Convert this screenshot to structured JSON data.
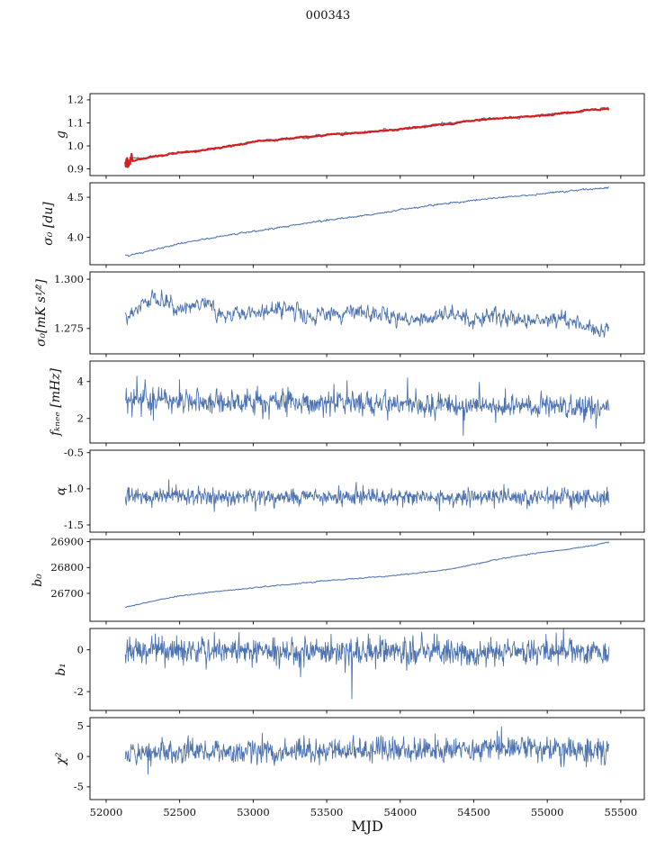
{
  "title": "000343",
  "chart_data": {
    "type": "line",
    "layout": "stacked-panels-shared-x",
    "xlabel": "MJD",
    "x_ticks": [
      "52000",
      "52500",
      "53000",
      "53500",
      "54000",
      "54500",
      "55000",
      "55500"
    ],
    "xlim": [
      51890,
      55660
    ],
    "x_data_range": [
      52130,
      55420
    ],
    "n_points": 1000,
    "line_color": "#4c72b0",
    "highlight_color": "#d62020",
    "panels": [
      {
        "id": "g",
        "ylabel": "g",
        "ylim": [
          0.871,
          1.227
        ],
        "yticks": [
          0.9,
          1.0,
          1.1,
          1.2
        ],
        "ytick_labels": [
          "0.9",
          "1.0",
          "1.1",
          "1.2"
        ],
        "series": [
          {
            "name": "gain-data",
            "color": "#4c72b0",
            "width": 1.0,
            "noise_sigma": 0.002,
            "noise_ar": 0.8,
            "keypoints": [
              [
                52130,
                0.931
              ],
              [
                52200,
                0.938
              ],
              [
                52300,
                0.951
              ],
              [
                52450,
                0.966
              ],
              [
                52600,
                0.978
              ],
              [
                52800,
                0.994
              ],
              [
                53000,
                1.018
              ],
              [
                53150,
                1.026
              ],
              [
                53350,
                1.038
              ],
              [
                53500,
                1.047
              ],
              [
                53700,
                1.057
              ],
              [
                53900,
                1.068
              ],
              [
                54100,
                1.08
              ],
              [
                54300,
                1.094
              ],
              [
                54500,
                1.112
              ],
              [
                54700,
                1.121
              ],
              [
                54900,
                1.129
              ],
              [
                55100,
                1.141
              ],
              [
                55250,
                1.152
              ],
              [
                55350,
                1.158
              ],
              [
                55420,
                1.162
              ]
            ]
          },
          {
            "name": "gain-model",
            "color": "#d62020",
            "width": 2.2,
            "noise_sigma": 0.001,
            "noise_ar": 0.8,
            "start_scatter": {
              "x_end": 52185,
              "sigma": 0.013
            },
            "keypoints": [
              [
                52130,
                0.931
              ],
              [
                52200,
                0.938
              ],
              [
                52300,
                0.951
              ],
              [
                52450,
                0.966
              ],
              [
                52600,
                0.978
              ],
              [
                52800,
                0.994
              ],
              [
                53000,
                1.018
              ],
              [
                53150,
                1.026
              ],
              [
                53350,
                1.038
              ],
              [
                53500,
                1.047
              ],
              [
                53700,
                1.057
              ],
              [
                53900,
                1.068
              ],
              [
                54100,
                1.08
              ],
              [
                54300,
                1.094
              ],
              [
                54500,
                1.112
              ],
              [
                54700,
                1.121
              ],
              [
                54900,
                1.129
              ],
              [
                55100,
                1.141
              ],
              [
                55250,
                1.152
              ],
              [
                55350,
                1.158
              ],
              [
                55420,
                1.162
              ]
            ]
          }
        ]
      },
      {
        "id": "sigma0-du",
        "ylabel": "σ₀ [du]",
        "ylim": [
          3.66,
          4.68
        ],
        "yticks": [
          4.0,
          4.5
        ],
        "ytick_labels": [
          "4.0",
          "4.5"
        ],
        "series": [
          {
            "name": "sigma0-du",
            "color": "#4c72b0",
            "width": 1.0,
            "noise_sigma": 0.004,
            "noise_ar": 0.6,
            "keypoints": [
              [
                52130,
                3.77
              ],
              [
                52250,
                3.81
              ],
              [
                52400,
                3.88
              ],
              [
                52550,
                3.94
              ],
              [
                52700,
                3.99
              ],
              [
                52900,
                4.05
              ],
              [
                53100,
                4.1
              ],
              [
                53300,
                4.16
              ],
              [
                53500,
                4.21
              ],
              [
                53700,
                4.26
              ],
              [
                53900,
                4.31
              ],
              [
                54100,
                4.37
              ],
              [
                54300,
                4.42
              ],
              [
                54500,
                4.46
              ],
              [
                54700,
                4.5
              ],
              [
                54900,
                4.53
              ],
              [
                55100,
                4.57
              ],
              [
                55300,
                4.6
              ],
              [
                55420,
                4.62
              ]
            ]
          }
        ]
      },
      {
        "id": "sigma0-mk",
        "ylabel": "σ₀[mK s¹⁄²]",
        "ylim": [
          1.2621,
          1.3037
        ],
        "yticks": [
          1.275,
          1.3
        ],
        "ytick_labels": [
          "1.275",
          "1.300"
        ],
        "series": [
          {
            "name": "sigma0-mk",
            "color": "#4c72b0",
            "width": 0.9,
            "noise_sigma": 0.0018,
            "noise_ar": 0.5,
            "keypoints": [
              [
                52130,
                1.279
              ],
              [
                52250,
                1.289
              ],
              [
                52350,
                1.291
              ],
              [
                52500,
                1.285
              ],
              [
                52650,
                1.288
              ],
              [
                52800,
                1.283
              ],
              [
                53000,
                1.282
              ],
              [
                53150,
                1.286
              ],
              [
                53350,
                1.283
              ],
              [
                53500,
                1.282
              ],
              [
                53700,
                1.284
              ],
              [
                53900,
                1.281
              ],
              [
                54100,
                1.28
              ],
              [
                54300,
                1.282
              ],
              [
                54500,
                1.28
              ],
              [
                54700,
                1.281
              ],
              [
                54900,
                1.279
              ],
              [
                55100,
                1.28
              ],
              [
                55250,
                1.276
              ],
              [
                55350,
                1.274
              ],
              [
                55420,
                1.277
              ]
            ]
          }
        ]
      },
      {
        "id": "fknee",
        "ylabel": "fₖₙₑₑ [mHz]",
        "ylim": [
          0.67,
          5.11
        ],
        "yticks": [
          2,
          4
        ],
        "ytick_labels": [
          "2",
          "4"
        ],
        "series": [
          {
            "name": "fknee",
            "color": "#4c72b0",
            "width": 0.9,
            "noise_sigma": 0.3,
            "noise_ar": 0.2,
            "spike_prob": 0.03,
            "spike_scale": 0.6,
            "spikes": [
              {
                "x": 52210,
                "y": 4.3
              },
              {
                "x": 52500,
                "y": 4.1
              },
              {
                "x": 54050,
                "y": 4.2
              }
            ],
            "keypoints": [
              [
                52130,
                3.1
              ],
              [
                52400,
                3.0
              ],
              [
                52800,
                2.9
              ],
              [
                53500,
                2.85
              ],
              [
                54200,
                2.75
              ],
              [
                54800,
                2.7
              ],
              [
                55420,
                2.6
              ]
            ]
          }
        ]
      },
      {
        "id": "alpha",
        "ylabel": "α",
        "ylim": [
          -1.6,
          -0.466
        ],
        "yticks": [
          -1.5,
          -1.0,
          -0.5
        ],
        "ytick_labels": [
          "-1.5",
          "-1.0",
          "-0.5"
        ],
        "series": [
          {
            "name": "alpha",
            "color": "#4c72b0",
            "width": 0.9,
            "noise_sigma": 0.055,
            "noise_ar": 0.1,
            "spike_prob": 0.02,
            "spike_scale": 0.13,
            "keypoints": [
              [
                52130,
                -1.1
              ],
              [
                53500,
                -1.11
              ],
              [
                55420,
                -1.12
              ]
            ]
          }
        ]
      },
      {
        "id": "b0",
        "ylabel": "b₀",
        "ylim": [
          26592,
          26909
        ],
        "yticks": [
          26700,
          26800,
          26900
        ],
        "ytick_labels": [
          "26700",
          "26800",
          "26900"
        ],
        "series": [
          {
            "name": "b0",
            "color": "#4c72b0",
            "width": 1.0,
            "noise_sigma": 0.8,
            "noise_ar": 0.6,
            "keypoints": [
              [
                52130,
                26645
              ],
              [
                52250,
                26662
              ],
              [
                52400,
                26680
              ],
              [
                52550,
                26694
              ],
              [
                52700,
                26704
              ],
              [
                52900,
                26716
              ],
              [
                53100,
                26727
              ],
              [
                53300,
                26738
              ],
              [
                53500,
                26749
              ],
              [
                53700,
                26757
              ],
              [
                53900,
                26766
              ],
              [
                54100,
                26777
              ],
              [
                54300,
                26790
              ],
              [
                54500,
                26812
              ],
              [
                54700,
                26836
              ],
              [
                54900,
                26854
              ],
              [
                55100,
                26868
              ],
              [
                55250,
                26880
              ],
              [
                55420,
                26897
              ]
            ]
          }
        ]
      },
      {
        "id": "b1",
        "ylabel": "b₁",
        "ylim": [
          -2.9,
          1.02
        ],
        "yticks": [
          -2,
          0
        ],
        "ytick_labels": [
          "-2",
          "0"
        ],
        "series": [
          {
            "name": "b1",
            "color": "#4c72b0",
            "width": 0.9,
            "noise_sigma": 0.3,
            "noise_ar": 0.05,
            "spike_prob": 0.03,
            "spike_scale": 0.45,
            "spikes": [
              {
                "x": 53670,
                "y": -2.35
              }
            ],
            "keypoints": [
              [
                52130,
                -0.05
              ],
              [
                53800,
                -0.08
              ],
              [
                55420,
                -0.1
              ]
            ]
          }
        ]
      },
      {
        "id": "chi2",
        "ylabel": "χ²",
        "ylim": [
          -7.1,
          6.4
        ],
        "yticks": [
          -5,
          0,
          5
        ],
        "ytick_labels": [
          "-5",
          "0",
          "5"
        ],
        "series": [
          {
            "name": "chi2",
            "color": "#4c72b0",
            "width": 0.9,
            "noise_sigma": 0.95,
            "noise_ar": 0.15,
            "spike_prob": 0.02,
            "spike_scale": 1.4,
            "spikes": [
              {
                "x": 54660,
                "y": 4.2
              },
              {
                "x": 54690,
                "y": 4.9
              }
            ],
            "keypoints": [
              [
                52130,
                0.7
              ],
              [
                53000,
                0.8
              ],
              [
                54000,
                1.0
              ],
              [
                54700,
                1.3
              ],
              [
                55420,
                1.0
              ]
            ]
          }
        ]
      }
    ]
  }
}
